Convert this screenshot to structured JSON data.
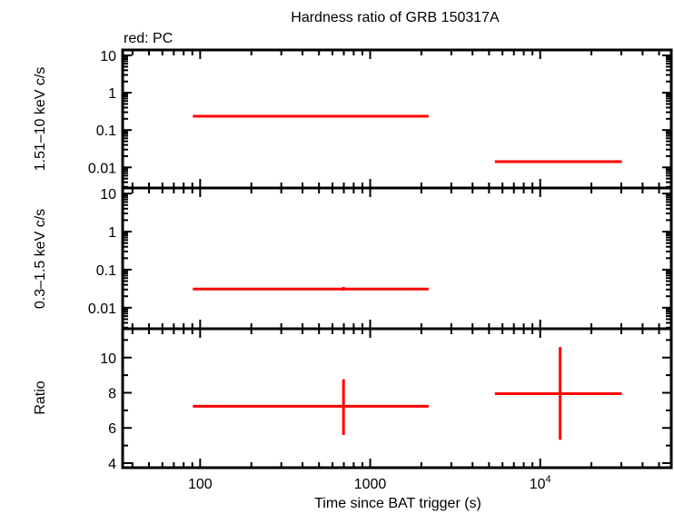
{
  "chart_data": {
    "type": "scatter",
    "title": "Hardness ratio of GRB 150317A",
    "subtitle": "red: PC",
    "xlabel": "Time since BAT trigger (s)",
    "xscale": "log",
    "xlim": [
      35,
      59000
    ],
    "xticks": [
      {
        "value": 100,
        "label": "100"
      },
      {
        "value": 1000,
        "label": "1000"
      },
      {
        "value": 10000,
        "label": "10",
        "sup": "4"
      }
    ],
    "series_color": "#ff0000",
    "grid": false,
    "panels": [
      {
        "ylabel": "1.51–10 keV c/s",
        "yscale": "log",
        "ylim": [
          0.0028,
          14
        ],
        "yticks": [
          {
            "value": 10,
            "label": "10"
          },
          {
            "value": 1,
            "label": "1"
          },
          {
            "value": 0.1,
            "label": "0.1"
          },
          {
            "value": 0.01,
            "label": "0.01"
          }
        ],
        "points": [
          {
            "x": 697,
            "xlo": 90.6,
            "xhi": 2207,
            "y": 0.235,
            "ylo": 0.225,
            "yhi": 0.245
          },
          {
            "x": 13100,
            "xlo": 5410,
            "xhi": 30200,
            "y": 0.0142,
            "ylo": 0.0135,
            "yhi": 0.015
          }
        ]
      },
      {
        "ylabel": "0.3–1.5 keV c/s",
        "yscale": "log",
        "ylim": [
          0.0028,
          14
        ],
        "yticks": [
          {
            "value": 10,
            "label": "10"
          },
          {
            "value": 1,
            "label": "1"
          },
          {
            "value": 0.1,
            "label": "0.1"
          },
          {
            "value": 0.01,
            "label": "0.01"
          }
        ],
        "points": [
          {
            "x": 697,
            "xlo": 90.6,
            "xhi": 2207,
            "y": 0.031,
            "ylo": 0.028,
            "yhi": 0.035
          }
        ]
      },
      {
        "ylabel": "Ratio",
        "yscale": "linear",
        "ylim": [
          3.74,
          11.64
        ],
        "yticks": [
          {
            "value": 10,
            "label": "10"
          },
          {
            "value": 8,
            "label": "8"
          },
          {
            "value": 6,
            "label": "6"
          },
          {
            "value": 4,
            "label": "4"
          }
        ],
        "points": [
          {
            "x": 697,
            "xlo": 90.6,
            "xhi": 2207,
            "y": 7.23,
            "ylo": 5.6,
            "yhi": 8.77
          },
          {
            "x": 13100,
            "xlo": 5410,
            "xhi": 30200,
            "y": 7.95,
            "ylo": 5.33,
            "yhi": 10.6
          }
        ]
      }
    ]
  }
}
